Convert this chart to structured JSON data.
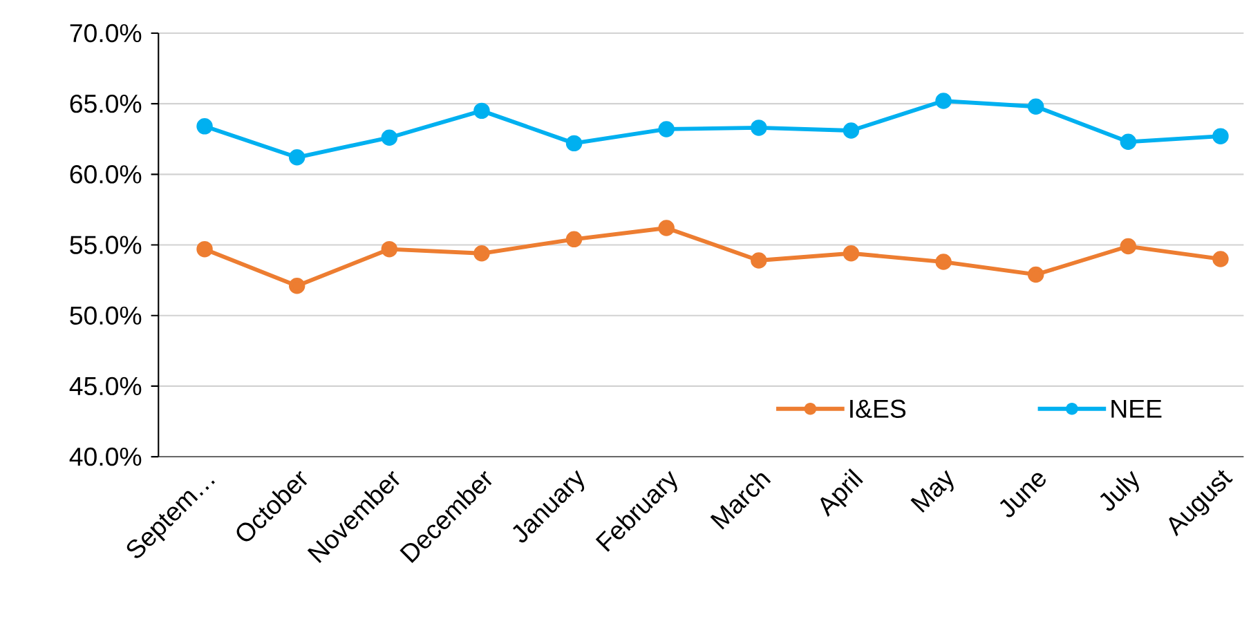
{
  "chart_data": {
    "type": "line",
    "categories": [
      "Septem…",
      "October",
      "November",
      "December",
      "January",
      "February",
      "March",
      "April",
      "May",
      "June",
      "July",
      "August"
    ],
    "series": [
      {
        "name": "I&ES",
        "color": "#ed7d31",
        "values": [
          54.7,
          52.1,
          54.7,
          54.4,
          55.4,
          56.2,
          53.9,
          54.4,
          53.8,
          52.9,
          54.9,
          54.0
        ]
      },
      {
        "name": "NEE",
        "color": "#00b0f0",
        "values": [
          63.4,
          61.2,
          62.6,
          64.5,
          62.2,
          63.2,
          63.3,
          63.1,
          65.2,
          64.8,
          62.3,
          62.7
        ]
      }
    ],
    "ylim": [
      40,
      70
    ],
    "yticks": [
      {
        "value": 40,
        "label": "40.0%"
      },
      {
        "value": 45,
        "label": "45.0%"
      },
      {
        "value": 50,
        "label": "50.0%"
      },
      {
        "value": 55,
        "label": "55.0%"
      },
      {
        "value": 60,
        "label": "60.0%"
      },
      {
        "value": 65,
        "label": "65.0%"
      },
      {
        "value": 70,
        "label": "70.0%"
      }
    ],
    "grid": "y",
    "legend": "bottom right",
    "marker": "circle",
    "line_style": "solid"
  }
}
